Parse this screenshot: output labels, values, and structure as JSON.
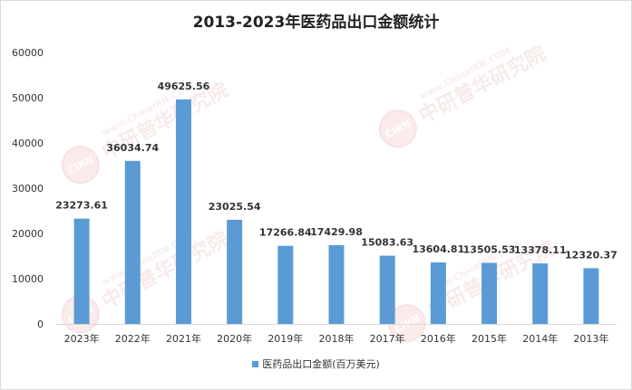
{
  "chart_data": {
    "type": "bar",
    "title": "2013-2023年医药品出口金额统计",
    "categories": [
      "2023年",
      "2022年",
      "2021年",
      "2020年",
      "2019年",
      "2018年",
      "2017年",
      "2016年",
      "2015年",
      "2014年",
      "2013年"
    ],
    "series": [
      {
        "name": "医药品出口金额(百万美元)",
        "values": [
          23273.61,
          36034.74,
          49625.56,
          23025.54,
          17266.84,
          17429.98,
          15083.63,
          13604.81,
          13505.53,
          13378.11,
          12320.37
        ],
        "value_labels": [
          "23273.61",
          "36034.74",
          "49625.56",
          "23025.54",
          "17266.84",
          "17429.98",
          "15083.63",
          "13604.81",
          "13505.53",
          "13378.11",
          "12320.37"
        ],
        "color": "#5b9bd5"
      }
    ],
    "y_ticks": [
      "0",
      "10000",
      "20000",
      "30000",
      "40000",
      "50000",
      "60000"
    ],
    "ylim": [
      0,
      60000
    ],
    "grid": false,
    "legend": "bottom"
  },
  "watermark": {
    "logo_text": "CIRN",
    "brand_text": "中研普华研究院",
    "url_text": "www.ChinaIRN.COM"
  }
}
